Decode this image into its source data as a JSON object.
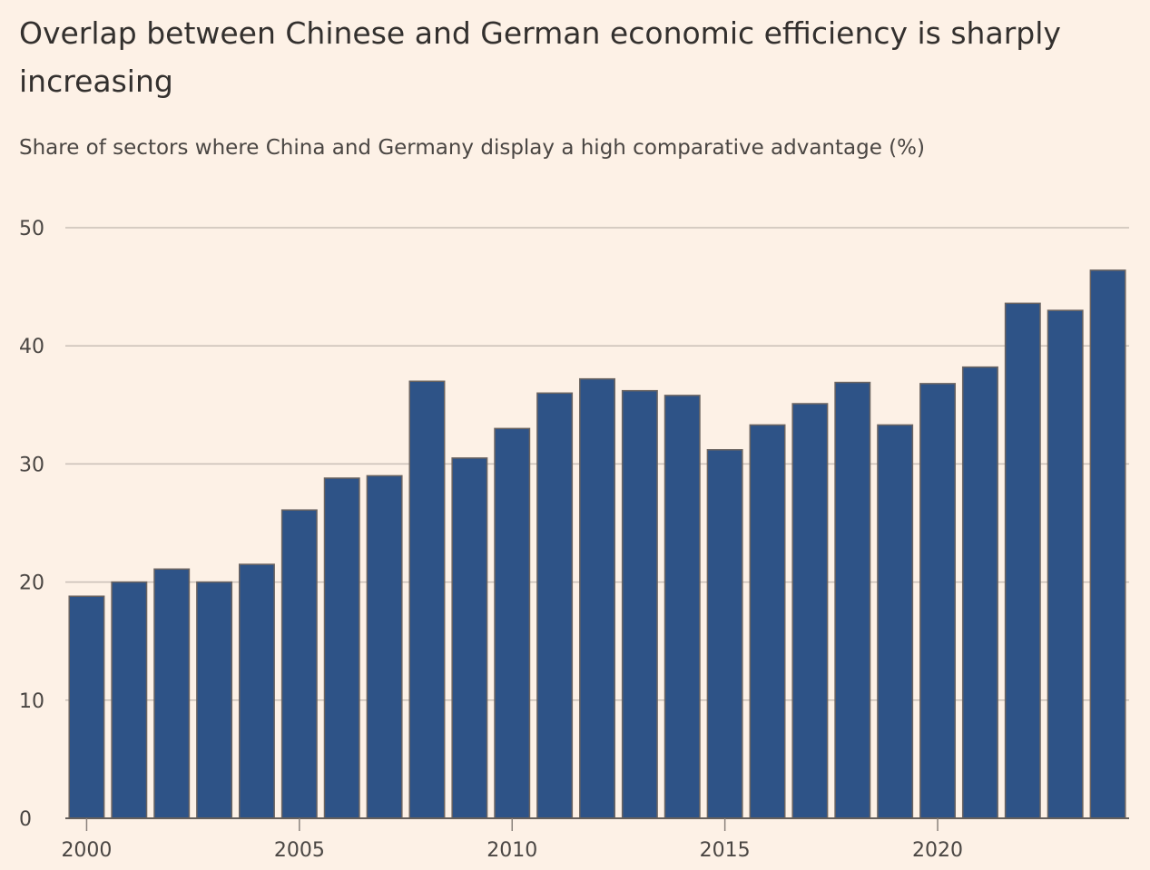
{
  "chart_data": {
    "type": "bar",
    "title": "Overlap between Chinese and German economic efficiency is sharply increasing",
    "subtitle": "Share of sectors where China and Germany display a high comparative advantage (%)",
    "xlabel": "",
    "ylabel": "",
    "categories": [
      2000,
      2001,
      2002,
      2003,
      2004,
      2005,
      2006,
      2007,
      2008,
      2009,
      2010,
      2011,
      2012,
      2013,
      2014,
      2015,
      2016,
      2017,
      2018,
      2019,
      2020,
      2021,
      2022,
      2023,
      2024
    ],
    "values": [
      18.8,
      20.0,
      21.1,
      20.0,
      21.5,
      26.1,
      28.8,
      29.0,
      37.0,
      30.5,
      33.0,
      36.0,
      37.2,
      36.2,
      35.8,
      31.2,
      33.3,
      35.1,
      36.9,
      33.3,
      36.8,
      38.2,
      43.6,
      43.0,
      46.4
    ],
    "ylim": [
      0,
      50
    ],
    "yticks": [
      0,
      10,
      20,
      30,
      40,
      50
    ],
    "xticks": [
      2000,
      2005,
      2010,
      2015,
      2020
    ],
    "grid": true,
    "colors": {
      "bar": "#2e5387",
      "bar_stroke": "#6b6461",
      "grid": "#c9bfb6",
      "background": "#fdf1e6"
    }
  }
}
